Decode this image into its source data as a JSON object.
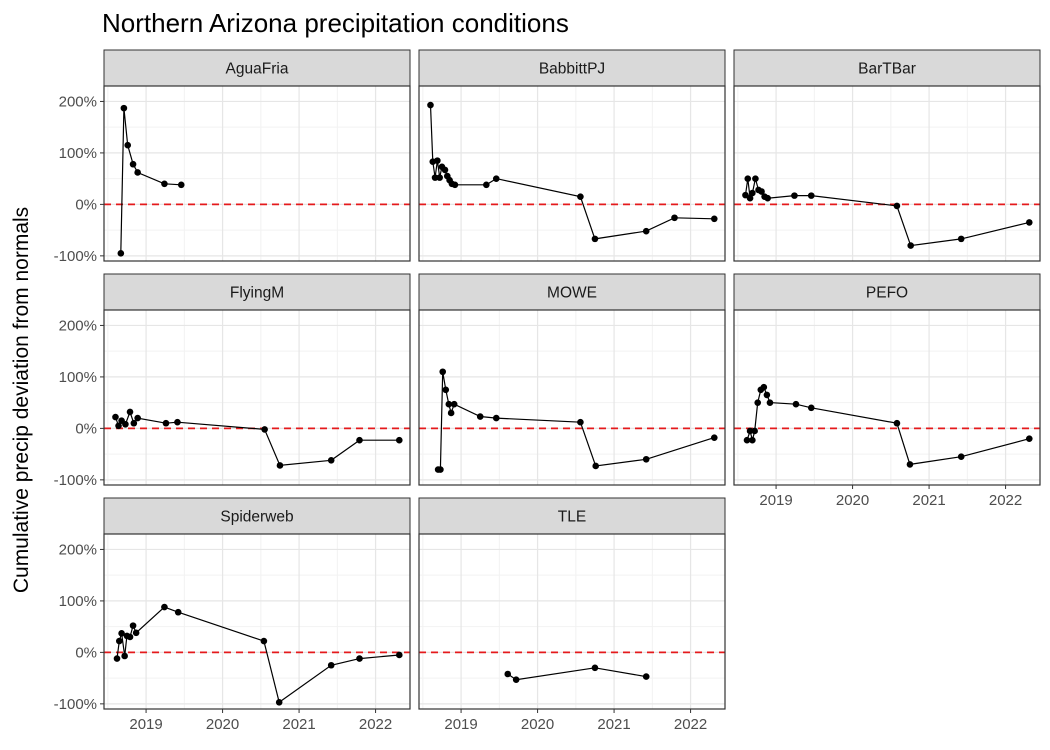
{
  "chart_data": {
    "type": "line",
    "title": "Northern Arizona precipitation conditions",
    "xlabel": "",
    "ylabel": "Cumulative precip deviation from normals",
    "xlim": [
      2018.45,
      2022.45
    ],
    "ylim": [
      -110,
      230
    ],
    "x_ticks": [
      2019,
      2020,
      2021,
      2022
    ],
    "x_tick_labels": [
      "2019",
      "2020",
      "2021",
      "2022"
    ],
    "y_ticks": [
      -100,
      0,
      100,
      200
    ],
    "y_tick_labels": [
      "-100%",
      "0%",
      "100%",
      "200%"
    ],
    "reference_line": {
      "y": 0,
      "style": "dashed",
      "color": "#e41a1c"
    },
    "grid": true,
    "line_color": "#000000",
    "panel_border_color": "#333333",
    "strip_fill": "#d9d9d9",
    "panels": [
      {
        "name": "AguaFria",
        "x": [
          2018.67,
          2018.71,
          2018.76,
          2018.83,
          2018.89,
          2019.24,
          2019.46
        ],
        "y": [
          -95,
          187,
          115,
          78,
          62,
          40,
          38
        ]
      },
      {
        "name": "BabbittPJ",
        "x": [
          2018.6,
          2018.63,
          2018.66,
          2018.69,
          2018.72,
          2018.75,
          2018.79,
          2018.82,
          2018.85,
          2018.88,
          2018.92,
          2019.33,
          2019.46,
          2020.56,
          2020.75,
          2021.42,
          2021.79,
          2022.31
        ],
        "y": [
          193,
          83,
          52,
          85,
          52,
          73,
          67,
          55,
          47,
          40,
          38,
          38,
          50,
          15,
          -67,
          -52,
          -26,
          -28
        ]
      },
      {
        "name": "BarTBar",
        "x": [
          2018.6,
          2018.63,
          2018.66,
          2018.69,
          2018.73,
          2018.77,
          2018.81,
          2018.85,
          2018.89,
          2019.24,
          2019.46,
          2020.58,
          2020.76,
          2021.42,
          2022.31
        ],
        "y": [
          18,
          50,
          12,
          22,
          50,
          28,
          25,
          15,
          12,
          17,
          17,
          -3,
          -80,
          -67,
          -35
        ]
      },
      {
        "name": "FlyingM",
        "x": [
          2018.6,
          2018.64,
          2018.68,
          2018.73,
          2018.79,
          2018.84,
          2018.89,
          2019.26,
          2019.41,
          2020.55,
          2020.75,
          2021.42,
          2021.79,
          2022.31
        ],
        "y": [
          22,
          5,
          15,
          8,
          32,
          10,
          20,
          10,
          12,
          -2,
          -72,
          -62,
          -23,
          -23
        ]
      },
      {
        "name": "MOWE",
        "x": [
          2018.7,
          2018.73,
          2018.76,
          2018.8,
          2018.84,
          2018.87,
          2018.91,
          2019.25,
          2019.46,
          2020.56,
          2020.76,
          2021.42,
          2022.31
        ],
        "y": [
          -80,
          -80,
          110,
          75,
          47,
          30,
          47,
          23,
          20,
          12,
          -73,
          -60,
          -18
        ]
      },
      {
        "name": "PEFO",
        "x": [
          2018.62,
          2018.66,
          2018.69,
          2018.72,
          2018.76,
          2018.8,
          2018.84,
          2018.88,
          2018.92,
          2019.26,
          2019.46,
          2020.58,
          2020.75,
          2021.42,
          2022.31
        ],
        "y": [
          -23,
          -5,
          -23,
          -5,
          50,
          75,
          80,
          65,
          50,
          47,
          40,
          10,
          -70,
          -55,
          -20
        ]
      },
      {
        "name": "Spiderweb",
        "x": [
          2018.62,
          2018.65,
          2018.68,
          2018.72,
          2018.75,
          2018.79,
          2018.83,
          2018.87,
          2019.24,
          2019.42,
          2020.54,
          2020.74,
          2021.42,
          2021.79,
          2022.31
        ],
        "y": [
          -12,
          22,
          37,
          -7,
          32,
          30,
          52,
          38,
          88,
          78,
          22,
          -97,
          -25,
          -12,
          -5
        ]
      },
      {
        "name": "TLE",
        "x": [
          2019.61,
          2019.72,
          2020.75,
          2021.42
        ],
        "y": [
          -42,
          -53,
          -30,
          -47
        ]
      }
    ]
  }
}
